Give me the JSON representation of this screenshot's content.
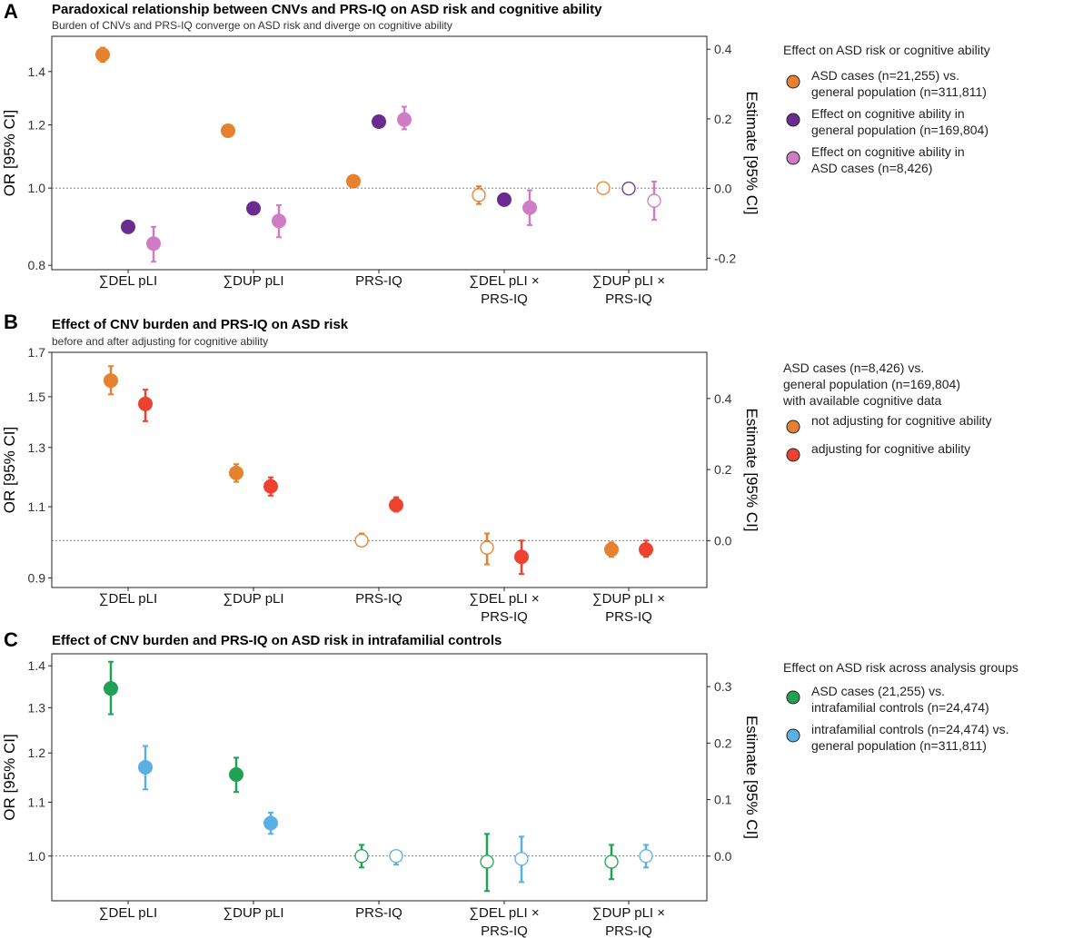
{
  "chart_data": [
    {
      "panel": "A",
      "type": "scatter",
      "title": "Paradoxical relationship between CNVs and PRS-IQ on ASD risk and cognitive ability",
      "subtitle": "Burden of CNVs and PRS-IQ converge on ASD risk and diverge on cognitive ability",
      "ylabel": "OR [95% CI]",
      "y2label": "Estimate [95% CI]",
      "yscale": "log",
      "ylim": [
        0.79,
        1.55
      ],
      "yticks": [
        0.8,
        1.0,
        1.2,
        1.4
      ],
      "ytick_labels": [
        "0.8",
        "1.0",
        "1.2",
        "1.4"
      ],
      "y2lim": [
        -0.233,
        0.437
      ],
      "y2ticks": [
        -0.2,
        0.0,
        0.2,
        0.4
      ],
      "y2tick_labels": [
        "-0.2",
        "0.0",
        "0.2",
        "0.4"
      ],
      "categories": [
        "∑DEL pLI",
        "∑DUP pLI",
        "PRS-IQ",
        "∑DEL pLI ×|PRS-IQ",
        "∑DUP pLI ×|PRS-IQ"
      ],
      "legend_title": "Effect on ASD risk or cognitive ability",
      "series": [
        {
          "name": "ASD cases (n=21,255) vs.|general population (n=311,811)",
          "color": "#E6812F",
          "axis": "left",
          "values": [
            1.47,
            1.18,
            1.02,
            0.98,
            1.0
          ],
          "lower": [
            1.44,
            1.175,
            1.015,
            0.955,
            0.985
          ],
          "upper": [
            1.5,
            1.19,
            1.025,
            1.005,
            1.015
          ],
          "significant": [
            true,
            true,
            true,
            false,
            false
          ]
        },
        {
          "name": "Effect on cognitive ability in|general population (n=169,804)",
          "color": "#6A2C91",
          "axis": "right",
          "values": [
            -0.11,
            -0.057,
            0.192,
            -0.032,
            0.0
          ],
          "lower": [
            -0.12,
            -0.067,
            0.182,
            -0.042,
            -0.01
          ],
          "upper": [
            -0.1,
            -0.047,
            0.202,
            -0.022,
            0.01
          ],
          "significant": [
            true,
            true,
            true,
            true,
            false
          ]
        },
        {
          "name": "Effect on cognitive ability in|ASD cases (n=8,426)",
          "color": "#D07CC4",
          "axis": "right",
          "values": [
            -0.158,
            -0.093,
            0.198,
            -0.055,
            -0.035
          ],
          "lower": [
            -0.21,
            -0.14,
            0.17,
            -0.105,
            -0.09
          ],
          "upper": [
            -0.11,
            -0.048,
            0.235,
            -0.005,
            0.02
          ],
          "significant": [
            true,
            true,
            true,
            true,
            false
          ]
        }
      ]
    },
    {
      "panel": "B",
      "type": "scatter",
      "title": "Effect of CNV burden and PRS-IQ on ASD risk",
      "subtitle": "before and after adjusting for cognitive ability",
      "ylabel": "OR [95% CI]",
      "y2label": "Estimate [95% CI]",
      "yscale": "log",
      "ylim": [
        0.876,
        1.7
      ],
      "yticks": [
        0.9,
        1.1,
        1.3,
        1.5,
        1.7
      ],
      "ytick_labels": [
        "0.9",
        "1.1",
        "1.3",
        "1.5",
        "1.7"
      ],
      "y2lim": [
        -0.132,
        0.53
      ],
      "y2ticks": [
        0.0,
        0.2,
        0.4
      ],
      "y2tick_labels": [
        "0.0",
        "0.2",
        "0.4"
      ],
      "categories": [
        "∑DEL pLI",
        "∑DUP pLI",
        "PRS-IQ",
        "∑DEL pLI ×|PRS-IQ",
        "∑DUP pLI ×|PRS-IQ"
      ],
      "legend_title": "ASD cases (n=8,426) vs.|general population (n=169,804)|with available cognitive data",
      "series": [
        {
          "name": "not adjusting for cognitive ability",
          "color": "#E6812F",
          "axis": "left",
          "values": [
            1.57,
            1.21,
            1.0,
            0.98,
            0.975
          ],
          "lower": [
            1.51,
            1.18,
            0.985,
            0.935,
            0.955
          ],
          "upper": [
            1.635,
            1.24,
            1.02,
            1.02,
            0.995
          ],
          "significant": [
            true,
            true,
            false,
            false,
            true
          ]
        },
        {
          "name": "adjusting for cognitive ability",
          "color": "#EE4231",
          "axis": "left",
          "values": [
            1.47,
            1.165,
            1.105,
            0.955,
            0.975
          ],
          "lower": [
            1.4,
            1.135,
            1.085,
            0.91,
            0.955
          ],
          "upper": [
            1.53,
            1.195,
            1.13,
            1.0,
            1.0
          ],
          "significant": [
            true,
            true,
            true,
            true,
            true
          ]
        }
      ]
    },
    {
      "panel": "C",
      "type": "scatter",
      "title": "Effect of CNV burden and PRS-IQ on ASD risk in intrafamilial controls",
      "subtitle": "",
      "ylabel": "OR [95% CI]",
      "y2label": "Estimate [95% CI]",
      "yscale": "log",
      "ylim": [
        0.924,
        1.43
      ],
      "yticks": [
        1.0,
        1.1,
        1.2,
        1.3,
        1.4
      ],
      "ytick_labels": [
        "1.0",
        "1.1",
        "1.2",
        "1.3",
        "1.4"
      ],
      "y2lim": [
        -0.079,
        0.358
      ],
      "y2ticks": [
        0.0,
        0.1,
        0.2,
        0.3
      ],
      "y2tick_labels": [
        "0.0",
        "0.1",
        "0.2",
        "0.3"
      ],
      "categories": [
        "∑DEL pLI",
        "∑DUP pLI",
        "PRS-IQ",
        "∑DEL pLI ×|PRS-IQ",
        "∑DUP pLI ×|PRS-IQ"
      ],
      "legend_title": "Effect on ASD risk across analysis groups",
      "series": [
        {
          "name": "ASD cases (21,255) vs.|intrafamilial controls (n=24,474)",
          "color": "#21A153",
          "axis": "left",
          "values": [
            1.345,
            1.155,
            1.0,
            0.99,
            0.99
          ],
          "lower": [
            1.285,
            1.12,
            0.98,
            0.94,
            0.96
          ],
          "upper": [
            1.41,
            1.19,
            1.02,
            1.04,
            1.02
          ],
          "significant": [
            true,
            true,
            false,
            false,
            false
          ]
        },
        {
          "name": "intrafamilial controls (n=24,474) vs.|general population (n=311,811)",
          "color": "#5AAFE3",
          "axis": "left",
          "values": [
            1.17,
            1.06,
            1.0,
            0.995,
            1.0
          ],
          "lower": [
            1.125,
            1.04,
            0.985,
            0.955,
            0.98
          ],
          "upper": [
            1.215,
            1.08,
            1.01,
            1.035,
            1.02
          ],
          "significant": [
            true,
            true,
            false,
            false,
            false
          ]
        }
      ]
    }
  ]
}
